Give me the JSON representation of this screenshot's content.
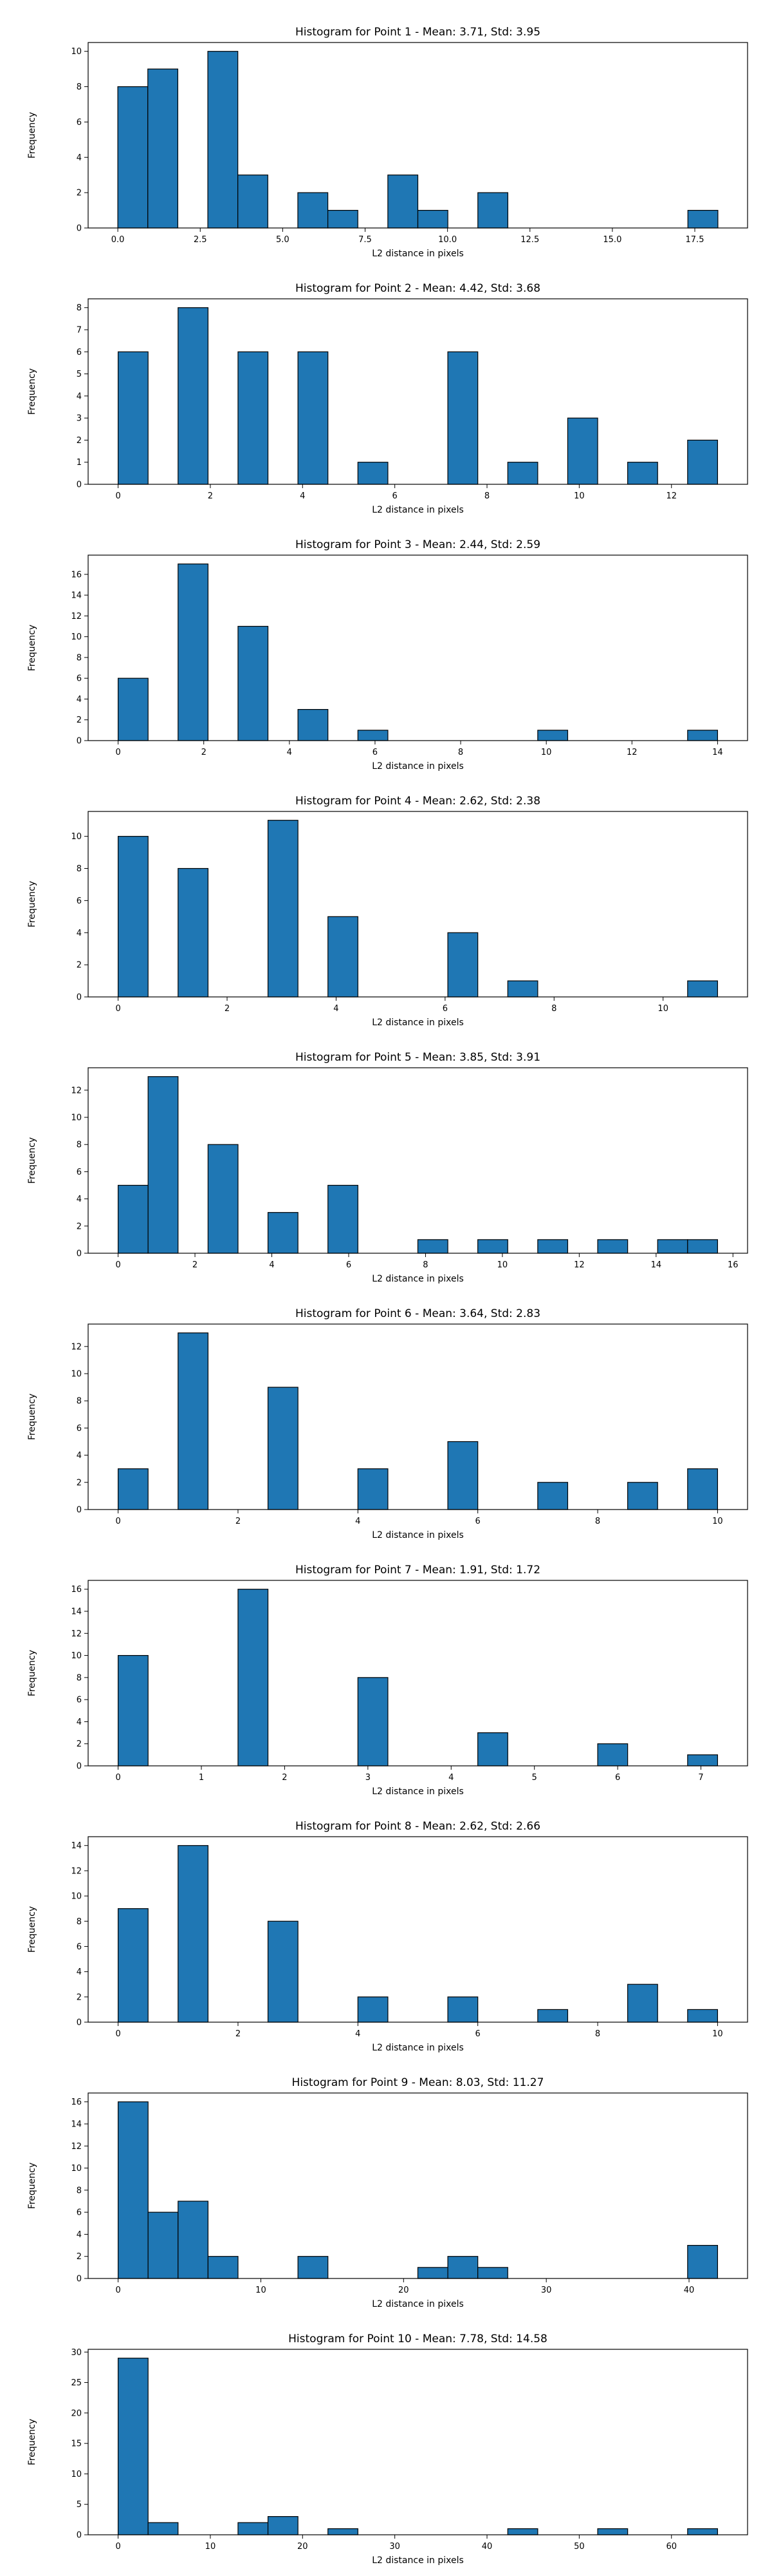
{
  "chart_data": [
    {
      "type": "bar",
      "title": "Histogram for Point 1 - Mean: 3.71, Std: 3.95",
      "xlabel": "L2 distance in pixels",
      "ylabel": "Frequency",
      "xlim": [
        -0.9,
        19.1
      ],
      "ylim": [
        0,
        10.5
      ],
      "xticks": [
        0.0,
        2.5,
        5.0,
        7.5,
        10.0,
        12.5,
        15.0,
        17.5
      ],
      "xtick_labels": [
        "0.0",
        "2.5",
        "5.0",
        "7.5",
        "10.0",
        "12.5",
        "15.0",
        "17.5"
      ],
      "yticks": [
        0,
        2,
        4,
        6,
        8,
        10
      ],
      "bin_edges": [
        0.0,
        0.91,
        1.82,
        2.73,
        3.64,
        4.55,
        5.46,
        6.37,
        7.28,
        8.19,
        9.1,
        10.01,
        10.92,
        11.83,
        12.74,
        13.65,
        14.56,
        15.47,
        16.38,
        17.29,
        18.2
      ],
      "values": [
        8,
        9,
        0,
        10,
        3,
        0,
        2,
        1,
        0,
        3,
        1,
        0,
        2,
        0,
        0,
        0,
        0,
        0,
        0,
        1
      ],
      "color": "#1f77b4",
      "grid": false
    },
    {
      "type": "bar",
      "title": "Histogram for Point 2 - Mean: 4.42, Std: 3.68",
      "xlabel": "L2 distance in pixels",
      "ylabel": "Frequency",
      "xlim": [
        -0.65,
        13.65
      ],
      "ylim": [
        0,
        8.4
      ],
      "xticks": [
        0,
        2,
        4,
        6,
        8,
        10,
        12
      ],
      "xtick_labels": [
        "0",
        "2",
        "4",
        "6",
        "8",
        "10",
        "12"
      ],
      "yticks": [
        0,
        1,
        2,
        3,
        4,
        5,
        6,
        7,
        8
      ],
      "bin_edges": [
        0.0,
        0.65,
        1.3,
        1.95,
        2.6,
        3.25,
        3.9,
        4.55,
        5.2,
        5.85,
        6.5,
        7.15,
        7.8,
        8.45,
        9.1,
        9.75,
        10.4,
        11.05,
        11.7,
        12.35,
        13.0
      ],
      "values": [
        6,
        0,
        8,
        0,
        6,
        0,
        6,
        0,
        1,
        0,
        0,
        6,
        0,
        1,
        0,
        3,
        0,
        1,
        0,
        2
      ],
      "color": "#1f77b4",
      "grid": false
    },
    {
      "type": "bar",
      "title": "Histogram for Point 3 - Mean: 2.44, Std: 2.59",
      "xlabel": "L2 distance in pixels",
      "ylabel": "Frequency",
      "xlim": [
        -0.7,
        14.7
      ],
      "ylim": [
        0,
        17.85
      ],
      "xticks": [
        0,
        2,
        4,
        6,
        8,
        10,
        12,
        14
      ],
      "xtick_labels": [
        "0",
        "2",
        "4",
        "6",
        "8",
        "10",
        "12",
        "14"
      ],
      "yticks": [
        0,
        2,
        4,
        6,
        8,
        10,
        12,
        14,
        16
      ],
      "bin_edges": [
        0.0,
        0.7,
        1.4,
        2.1,
        2.8,
        3.5,
        4.2,
        4.9,
        5.6,
        6.3,
        7.0,
        7.7,
        8.4,
        9.1,
        9.8,
        10.5,
        11.2,
        11.9,
        12.6,
        13.3,
        14.0
      ],
      "values": [
        6,
        0,
        17,
        0,
        11,
        0,
        3,
        0,
        1,
        0,
        0,
        0,
        0,
        0,
        1,
        0,
        0,
        0,
        0,
        1
      ],
      "color": "#1f77b4",
      "grid": false
    },
    {
      "type": "bar",
      "title": "Histogram for Point 4 - Mean: 2.62, Std: 2.38",
      "xlabel": "L2 distance in pixels",
      "ylabel": "Frequency",
      "xlim": [
        -0.55,
        11.55
      ],
      "ylim": [
        0,
        11.55
      ],
      "xticks": [
        0,
        2,
        4,
        6,
        8,
        10
      ],
      "xtick_labels": [
        "0",
        "2",
        "4",
        "6",
        "8",
        "10"
      ],
      "yticks": [
        0,
        2,
        4,
        6,
        8,
        10
      ],
      "bin_edges": [
        0.0,
        0.55,
        1.1,
        1.65,
        2.2,
        2.75,
        3.3,
        3.85,
        4.4,
        4.95,
        5.5,
        6.05,
        6.6,
        7.15,
        7.7,
        8.25,
        8.8,
        9.35,
        9.9,
        10.45,
        11.0
      ],
      "values": [
        10,
        0,
        8,
        0,
        0,
        11,
        0,
        5,
        0,
        0,
        0,
        4,
        0,
        1,
        0,
        0,
        0,
        0,
        0,
        1
      ],
      "color": "#1f77b4",
      "grid": false
    },
    {
      "type": "bar",
      "title": "Histogram for Point 5 - Mean: 3.85, Std: 3.91",
      "xlabel": "L2 distance in pixels",
      "ylabel": "Frequency",
      "xlim": [
        -0.78,
        16.38
      ],
      "ylim": [
        0,
        13.65
      ],
      "xticks": [
        0,
        2,
        4,
        6,
        8,
        10,
        12,
        14,
        16
      ],
      "xtick_labels": [
        "0",
        "2",
        "4",
        "6",
        "8",
        "10",
        "12",
        "14",
        "16"
      ],
      "yticks": [
        0,
        2,
        4,
        6,
        8,
        10,
        12
      ],
      "bin_edges": [
        0.0,
        0.78,
        1.56,
        2.34,
        3.12,
        3.9,
        4.68,
        5.46,
        6.24,
        7.02,
        7.8,
        8.58,
        9.36,
        10.14,
        10.92,
        11.7,
        12.48,
        13.26,
        14.04,
        14.82,
        15.6
      ],
      "values": [
        5,
        13,
        0,
        8,
        0,
        3,
        0,
        5,
        0,
        0,
        1,
        0,
        1,
        0,
        1,
        0,
        1,
        0,
        1,
        1
      ],
      "color": "#1f77b4",
      "grid": false
    },
    {
      "type": "bar",
      "title": "Histogram for Point 6 - Mean: 3.64, Std: 2.83",
      "xlabel": "L2 distance in pixels",
      "ylabel": "Frequency",
      "xlim": [
        -0.5,
        10.5
      ],
      "ylim": [
        0,
        13.65
      ],
      "xticks": [
        0,
        2,
        4,
        6,
        8,
        10
      ],
      "xtick_labels": [
        "0",
        "2",
        "4",
        "6",
        "8",
        "10"
      ],
      "yticks": [
        0,
        2,
        4,
        6,
        8,
        10,
        12
      ],
      "bin_edges": [
        0.0,
        0.5,
        1.0,
        1.5,
        2.0,
        2.5,
        3.0,
        3.5,
        4.0,
        4.5,
        5.0,
        5.5,
        6.0,
        6.5,
        7.0,
        7.5,
        8.0,
        8.5,
        9.0,
        9.5,
        10.0
      ],
      "values": [
        3,
        0,
        13,
        0,
        0,
        9,
        0,
        0,
        3,
        0,
        0,
        5,
        0,
        0,
        2,
        0,
        0,
        2,
        0,
        3
      ],
      "color": "#1f77b4",
      "grid": false
    },
    {
      "type": "bar",
      "title": "Histogram for Point 7 - Mean: 1.91, Std: 1.72",
      "xlabel": "L2 distance in pixels",
      "ylabel": "Frequency",
      "xlim": [
        -0.36,
        7.56
      ],
      "ylim": [
        0,
        16.8
      ],
      "xticks": [
        0,
        1,
        2,
        3,
        4,
        5,
        6,
        7
      ],
      "xtick_labels": [
        "0",
        "1",
        "2",
        "3",
        "4",
        "5",
        "6",
        "7"
      ],
      "yticks": [
        0,
        2,
        4,
        6,
        8,
        10,
        12,
        14,
        16
      ],
      "bin_edges": [
        0.0,
        0.36,
        0.72,
        1.08,
        1.44,
        1.8,
        2.16,
        2.52,
        2.88,
        3.24,
        3.6,
        3.96,
        4.32,
        4.68,
        5.04,
        5.4,
        5.76,
        6.12,
        6.48,
        6.84,
        7.2
      ],
      "values": [
        10,
        0,
        0,
        0,
        16,
        0,
        0,
        0,
        8,
        0,
        0,
        0,
        3,
        0,
        0,
        0,
        2,
        0,
        0,
        1
      ],
      "color": "#1f77b4",
      "grid": false
    },
    {
      "type": "bar",
      "title": "Histogram for Point 8 - Mean: 2.62, Std: 2.66",
      "xlabel": "L2 distance in pixels",
      "ylabel": "Frequency",
      "xlim": [
        -0.5,
        10.5
      ],
      "ylim": [
        0,
        14.7
      ],
      "xticks": [
        0,
        2,
        4,
        6,
        8,
        10
      ],
      "xtick_labels": [
        "0",
        "2",
        "4",
        "6",
        "8",
        "10"
      ],
      "yticks": [
        0,
        2,
        4,
        6,
        8,
        10,
        12,
        14
      ],
      "bin_edges": [
        0.0,
        0.5,
        1.0,
        1.5,
        2.0,
        2.5,
        3.0,
        3.5,
        4.0,
        4.5,
        5.0,
        5.5,
        6.0,
        6.5,
        7.0,
        7.5,
        8.0,
        8.5,
        9.0,
        9.5,
        10.0
      ],
      "values": [
        9,
        0,
        14,
        0,
        0,
        8,
        0,
        0,
        2,
        0,
        0,
        2,
        0,
        0,
        1,
        0,
        0,
        3,
        0,
        1
      ],
      "color": "#1f77b4",
      "grid": false
    },
    {
      "type": "bar",
      "title": "Histogram for Point 9 - Mean: 8.03, Std: 11.27",
      "xlabel": "L2 distance in pixels",
      "ylabel": "Frequency",
      "xlim": [
        -2.1,
        44.1
      ],
      "ylim": [
        0,
        16.8
      ],
      "xticks": [
        0,
        10,
        20,
        30,
        40
      ],
      "xtick_labels": [
        "0",
        "10",
        "20",
        "30",
        "40"
      ],
      "yticks": [
        0,
        2,
        4,
        6,
        8,
        10,
        12,
        14,
        16
      ],
      "bin_edges": [
        0.0,
        2.1,
        4.2,
        6.3,
        8.4,
        10.5,
        12.6,
        14.7,
        16.8,
        18.9,
        21.0,
        23.1,
        25.2,
        27.3,
        29.4,
        31.5,
        33.6,
        35.7,
        37.8,
        39.9,
        42.0
      ],
      "values": [
        16,
        6,
        7,
        2,
        0,
        0,
        2,
        0,
        0,
        0,
        1,
        2,
        1,
        0,
        0,
        0,
        0,
        0,
        0,
        3
      ],
      "color": "#1f77b4",
      "grid": false
    },
    {
      "type": "bar",
      "title": "Histogram for Point 10 - Mean: 7.78, Std: 14.58",
      "xlabel": "L2 distance in pixels",
      "ylabel": "Frequency",
      "xlim": [
        -3.25,
        68.25
      ],
      "ylim": [
        0,
        30.45
      ],
      "xticks": [
        0,
        10,
        20,
        30,
        40,
        50,
        60
      ],
      "xtick_labels": [
        "0",
        "10",
        "20",
        "30",
        "40",
        "50",
        "60"
      ],
      "yticks": [
        0,
        5,
        10,
        15,
        20,
        25,
        30
      ],
      "bin_edges": [
        0.0,
        3.25,
        6.5,
        9.75,
        13.0,
        16.25,
        19.5,
        22.75,
        26.0,
        29.25,
        32.5,
        35.75,
        39.0,
        42.25,
        45.5,
        48.75,
        52.0,
        55.25,
        58.5,
        61.75,
        65.0
      ],
      "values": [
        29,
        2,
        0,
        0,
        2,
        3,
        0,
        1,
        0,
        0,
        0,
        0,
        0,
        1,
        0,
        0,
        1,
        0,
        0,
        1
      ],
      "color": "#1f77b4",
      "grid": false
    }
  ]
}
